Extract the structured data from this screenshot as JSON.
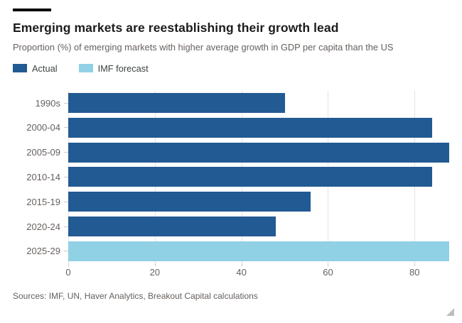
{
  "header": {
    "title": "Emerging markets are reestablishing their growth lead",
    "subtitle": "Proportion (%) of emerging markets with higher average growth in GDP per capita than the US"
  },
  "legend": [
    {
      "label": "Actual",
      "color": "#225a93"
    },
    {
      "label": "IMF forecast",
      "color": "#90d1e5"
    }
  ],
  "chart_data": {
    "type": "bar",
    "orientation": "horizontal",
    "title": "Emerging markets are reestablishing their growth lead",
    "subtitle": "Proportion (%) of emerging markets with higher average growth in GDP per capita than the US",
    "categories": [
      "1990s",
      "2000-04",
      "2005-09",
      "2010-14",
      "2015-19",
      "2020-24",
      "2025-29"
    ],
    "values": [
      50,
      84,
      88,
      84,
      56,
      48,
      88
    ],
    "series_by_bar": [
      "Actual",
      "Actual",
      "Actual",
      "Actual",
      "Actual",
      "Actual",
      "IMF forecast"
    ],
    "colors": {
      "Actual": "#225a93",
      "IMF forecast": "#90d1e5"
    },
    "xticks": [
      0,
      20,
      40,
      60,
      80
    ],
    "xlim": [
      0,
      88
    ],
    "xlabel": "",
    "ylabel": "",
    "grid": true,
    "legend_position": "top-left"
  },
  "footer": {
    "source": "Sources: IMF, UN, Haver Analytics, Breakout Capital calculations"
  },
  "style_colors": {
    "gridline": "#e5e4e1",
    "axis_text": "#67615e",
    "title_text": "#1c1c1c",
    "kicker_bar": "#000000"
  }
}
